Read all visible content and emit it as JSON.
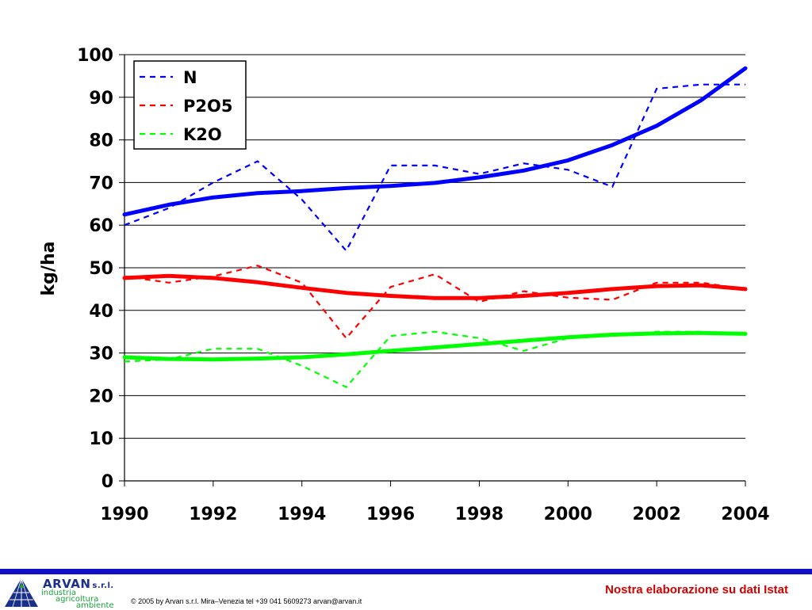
{
  "chart_data": {
    "type": "line",
    "ylabel": "kg/ha",
    "xlabel": "",
    "title": "",
    "xlim": [
      1990,
      2004
    ],
    "ylim": [
      0,
      100
    ],
    "x_ticks": [
      "1990",
      "1992",
      "1994",
      "1996",
      "1998",
      "2000",
      "2002",
      "2004"
    ],
    "y_ticks": [
      "0",
      "10",
      "20",
      "30",
      "40",
      "50",
      "60",
      "70",
      "80",
      "90",
      "100"
    ],
    "grid": "horizontal",
    "legend_position": "top-left",
    "x": [
      1990,
      1991,
      1992,
      1993,
      1994,
      1995,
      1996,
      1997,
      1998,
      1999,
      2000,
      2001,
      2002,
      2003,
      2004
    ],
    "series": [
      {
        "name": "N",
        "color": "#0000ff",
        "style": "dashed",
        "values": [
          60,
          64,
          70,
          75,
          66,
          54,
          74,
          74,
          72,
          74.5,
          73,
          69,
          92,
          93,
          93
        ]
      },
      {
        "name": "P2O5",
        "color": "#ff0000",
        "style": "dashed",
        "values": [
          48,
          46.5,
          48,
          50.5,
          46.5,
          33.5,
          45.5,
          48.5,
          42,
          44.5,
          43,
          42.5,
          46.5,
          46.5,
          45
        ]
      },
      {
        "name": "K2O",
        "color": "#00ff00",
        "style": "dashed",
        "values": [
          28,
          28.5,
          31,
          31,
          27,
          22,
          34,
          35,
          33.5,
          30.5,
          33.5,
          34,
          35,
          35,
          34.5
        ]
      }
    ],
    "trends": [
      {
        "color": "#0000ff",
        "values": [
          62.5,
          64.8,
          66.5,
          67.5,
          68,
          68.7,
          69.2,
          69.9,
          71.2,
          72.8,
          75.2,
          78.8,
          83.3,
          89.3,
          96.8
        ]
      },
      {
        "color": "#ff0000",
        "values": [
          47.6,
          48.1,
          47.6,
          46.6,
          45.3,
          44.1,
          43.4,
          42.9,
          42.9,
          43.4,
          44.1,
          45,
          45.7,
          45.9,
          45
        ]
      },
      {
        "color": "#00ff00",
        "values": [
          29,
          28.6,
          28.5,
          28.7,
          29,
          29.7,
          30.5,
          31.3,
          32.1,
          32.9,
          33.7,
          34.3,
          34.6,
          34.7,
          34.5
        ]
      }
    ]
  },
  "footer": {
    "logo_name": "ARVAN",
    "logo_suffix": "s.r.l.",
    "logo_line1": "industria",
    "logo_line2": "agricoltura",
    "logo_line3": "ambiente",
    "copyright": "© 2005 by Arvan s.r.l. Mira–Venezia tel +39 041 5609273 arvan@arvan.it",
    "source_note": "Nostra elaborazione su dati Istat",
    "bar_color": "#1010c8"
  }
}
